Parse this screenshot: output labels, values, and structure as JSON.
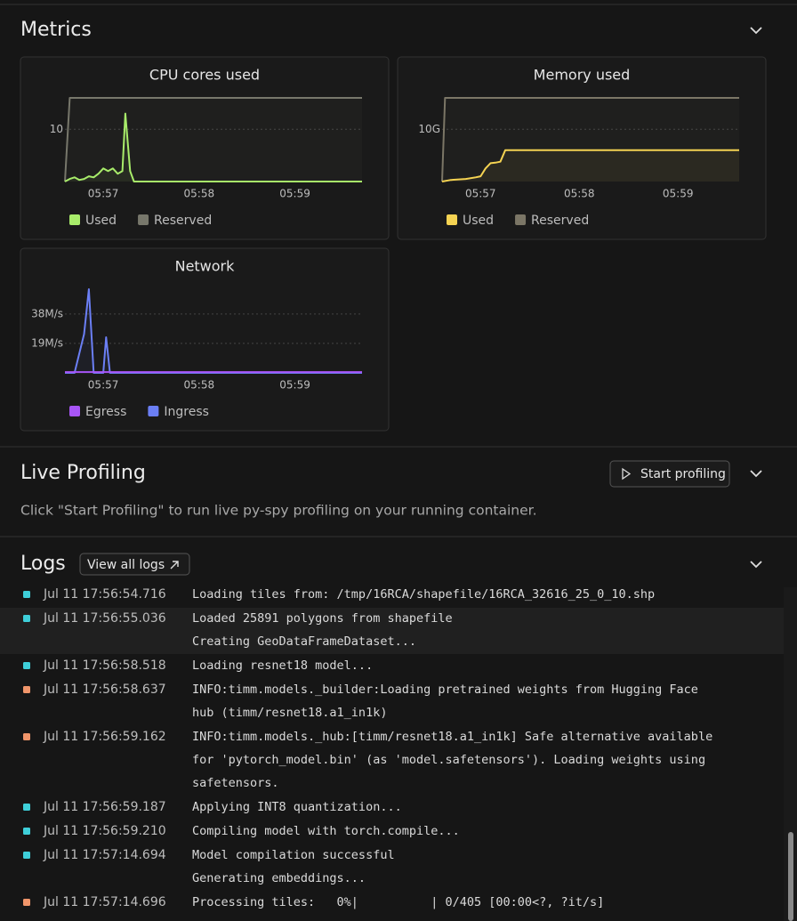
{
  "metrics": {
    "title": "Metrics"
  },
  "chart_data": [
    {
      "type": "line",
      "title": "CPU cores used",
      "xlim": [
        56.6,
        59.7
      ],
      "xticks": [
        {
          "value": 57,
          "label": "05:57"
        },
        {
          "value": 58,
          "label": "05:58"
        },
        {
          "value": 59,
          "label": "05:59"
        }
      ],
      "ylim": [
        0,
        16
      ],
      "yticks": [
        10
      ],
      "grid": true,
      "series": [
        {
          "name": "Used",
          "color": "#a8ec6a",
          "x": [
            56.6,
            56.65,
            56.7,
            56.75,
            56.8,
            56.85,
            56.9,
            56.95,
            57.0,
            57.05,
            57.1,
            57.15,
            57.2,
            57.23,
            57.28,
            57.32,
            59.7
          ],
          "values": [
            0,
            0.5,
            0.8,
            0.3,
            0.5,
            1,
            0.8,
            1.5,
            2.5,
            2,
            2.5,
            1.5,
            2,
            13,
            2,
            0,
            0
          ]
        },
        {
          "name": "Reserved",
          "color": "#77776b",
          "x": [
            56.6,
            56.65,
            59.7
          ],
          "values": [
            0,
            16,
            16
          ]
        }
      ]
    },
    {
      "type": "line",
      "title": "Memory used",
      "xlim": [
        56.61,
        59.62
      ],
      "xticks": [
        {
          "value": 57,
          "label": "05:57"
        },
        {
          "value": 58,
          "label": "05:58"
        },
        {
          "value": 59,
          "label": "05:59"
        }
      ],
      "ylim": [
        0,
        16
      ],
      "yticks": [
        {
          "value": 10,
          "label": "10G"
        }
      ],
      "grid": true,
      "series": [
        {
          "name": "Used",
          "color": "#f5d352",
          "x": [
            56.61,
            56.7,
            56.85,
            56.95,
            57.0,
            57.05,
            57.1,
            57.15,
            57.2,
            57.25,
            59.62
          ],
          "values": [
            0,
            0.3,
            0.5,
            0.8,
            1.0,
            2.5,
            3.5,
            3.6,
            3.8,
            6,
            6
          ]
        },
        {
          "name": "Reserved",
          "color": "#7b7666",
          "x": [
            56.61,
            56.64,
            59.62
          ],
          "values": [
            0,
            16,
            16
          ]
        }
      ]
    },
    {
      "type": "line",
      "title": "Network",
      "xlim": [
        56.6,
        59.7
      ],
      "xticks": [
        {
          "value": 57,
          "label": "05:57"
        },
        {
          "value": 58,
          "label": "05:58"
        },
        {
          "value": 59,
          "label": "05:59"
        }
      ],
      "ylim": [
        0,
        54
      ],
      "yticks": [
        {
          "value": 19,
          "label": "19M/s"
        },
        {
          "value": 38,
          "label": "38M/s"
        }
      ],
      "grid": true,
      "series": [
        {
          "name": "Egress",
          "color": "#a855f7",
          "x": [
            56.6,
            59.7
          ],
          "values": [
            0.5,
            0.5
          ]
        },
        {
          "name": "Ingress",
          "color": "#6b7ff5",
          "x": [
            56.6,
            56.7,
            56.8,
            56.85,
            56.9,
            57.0,
            57.03,
            57.07,
            59.7
          ],
          "values": [
            0,
            0,
            25,
            54,
            0,
            0,
            23,
            0,
            0
          ]
        }
      ]
    }
  ],
  "live_profiling": {
    "title": "Live Profiling",
    "button": "Start profiling",
    "description": "Click \"Start Profiling\" to run live py-spy profiling on your running container."
  },
  "logs": {
    "title": "Logs",
    "button": "View all logs",
    "entries": [
      {
        "time": "Jul 11 17:56:54.716",
        "color": "#3ecfd9",
        "lines": [
          "Loading tiles from: /tmp/16RCA/shapefile/16RCA_32616_25_0_10.shp"
        ]
      },
      {
        "time": "Jul 11 17:56:55.036",
        "color": "#3ecfd9",
        "lines": [
          "Loaded 25891 polygons from shapefile",
          "Creating GeoDataFrameDataset..."
        ]
      },
      {
        "time": "Jul 11 17:56:58.518",
        "color": "#3ecfd9",
        "lines": [
          "Loading resnet18 model..."
        ]
      },
      {
        "time": "Jul 11 17:56:58.637",
        "color": "#f0956a",
        "lines": [
          "INFO:timm.models._builder:Loading pretrained weights from Hugging Face",
          "hub (timm/resnet18.a1_in1k)"
        ]
      },
      {
        "time": "Jul 11 17:56:59.162",
        "color": "#f0956a",
        "lines": [
          "INFO:timm.models._hub:[timm/resnet18.a1_in1k] Safe alternative available",
          "for 'pytorch_model.bin' (as 'model.safetensors'). Loading weights using",
          "safetensors."
        ]
      },
      {
        "time": "Jul 11 17:56:59.187",
        "color": "#3ecfd9",
        "lines": [
          "Applying INT8 quantization..."
        ]
      },
      {
        "time": "Jul 11 17:56:59.210",
        "color": "#3ecfd9",
        "lines": [
          "Compiling model with torch.compile..."
        ]
      },
      {
        "time": "Jul 11 17:57:14.694",
        "color": "#3ecfd9",
        "lines": [
          "Model compilation successful",
          "Generating embeddings..."
        ]
      },
      {
        "time": "Jul 11 17:57:14.696",
        "color": "#f0956a",
        "lines": [
          "Processing tiles:   0%|          | 0/405 [00:00<?, ?it/s]"
        ]
      }
    ]
  }
}
